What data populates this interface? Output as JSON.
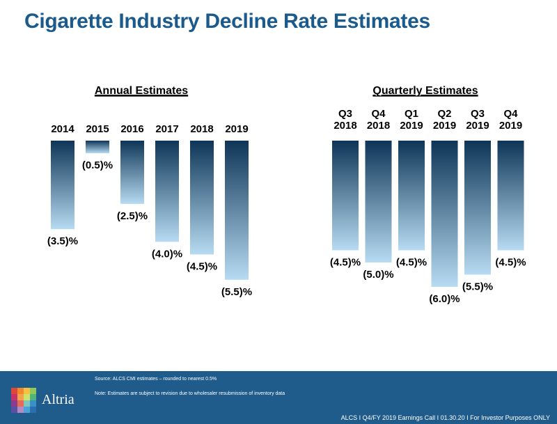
{
  "title": "Cigarette Industry Decline Rate Estimates",
  "colors": {
    "bar_top": "#0e3557",
    "bar_bottom": "#b7dbf2",
    "title": "#1a5a8c",
    "footer": "#1f5b8b"
  },
  "chart_data": [
    {
      "type": "bar",
      "title": "Annual Estimates",
      "categories": [
        [
          "2014"
        ],
        [
          "2015"
        ],
        [
          "2016"
        ],
        [
          "2017"
        ],
        [
          "2018"
        ],
        [
          "2019"
        ]
      ],
      "values": [
        -3.5,
        -0.5,
        -2.5,
        -4.0,
        -4.5,
        -5.5
      ],
      "labels": [
        "(3.5)%",
        "(0.5)%",
        "(2.5)%",
        "(4.0)%",
        "(4.5)%",
        "(5.5)%"
      ],
      "ylim": [
        -6.0,
        0
      ],
      "grid": false
    },
    {
      "type": "bar",
      "title": "Quarterly Estimates",
      "categories": [
        [
          "Q3",
          "2018"
        ],
        [
          "Q4",
          "2018"
        ],
        [
          "Q1",
          "2019"
        ],
        [
          "Q2",
          "2019"
        ],
        [
          "Q3",
          "2019"
        ],
        [
          "Q4",
          "2019"
        ]
      ],
      "values": [
        -4.5,
        -5.0,
        -4.5,
        -6.0,
        -5.5,
        -4.5
      ],
      "labels": [
        "(4.5)%",
        "(5.0)%",
        "(4.5)%",
        "(6.0)%",
        "(5.5)%",
        "(4.5)%"
      ],
      "ylim": [
        -6.0,
        0
      ],
      "grid": false
    }
  ],
  "footer": {
    "brand": "Altria",
    "source": "Source: ALCS CMI estimates – rounded to nearest 0.5%",
    "note": "Note: Estimates are subject to revision due to wholesaler resubmission of inventory data",
    "right": "ALCS I Q4/FY 2019 Earnings Call I 01.30.20 I For Investor Purposes ONLY"
  }
}
